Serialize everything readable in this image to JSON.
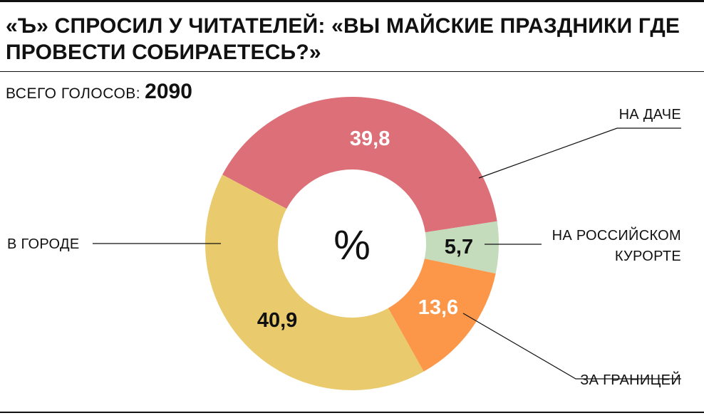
{
  "header": {
    "title": "«Ъ» СПРОСИЛ У ЧИТАТЕЛЕЙ: «ВЫ МАЙСКИЕ ПРАЗДНИКИ ГДЕ ПРОВЕСТИ СОБИРАЕТЕСЬ?»",
    "total_label": "ВСЕГО ГОЛОСОВ:",
    "total_value": "2090"
  },
  "chart_data": {
    "type": "pie",
    "donut": true,
    "center_label": "%",
    "start_category": "НА ДАЧЕ",
    "direction": "clockwise",
    "slices": [
      {
        "category": "НА ДАЧЕ",
        "value": 39.8,
        "label": "39,8",
        "color": "#dc6f78",
        "label_color": "#ffffff",
        "label_lines": [
          "НА ДАЧЕ"
        ]
      },
      {
        "category": "НА РОССИЙСКОМ КУРОРТЕ",
        "value": 5.7,
        "label": "5,7",
        "color": "#c5dcbc",
        "label_color": "#111111",
        "label_lines": [
          "НА РОССИЙСКОМ",
          "КУРОРТЕ"
        ]
      },
      {
        "category": "ЗА ГРАНИЦЕЙ",
        "value": 13.6,
        "label": "13,6",
        "color": "#fc974a",
        "label_color": "#ffffff",
        "label_lines": [
          "ЗА ГРАНИЦЕЙ"
        ]
      },
      {
        "category": "В ГОРОДЕ",
        "value": 40.9,
        "label": "40,9",
        "color": "#e9ca6c",
        "label_color": "#111111",
        "label_lines": [
          "В ГОРОДЕ"
        ]
      }
    ]
  }
}
